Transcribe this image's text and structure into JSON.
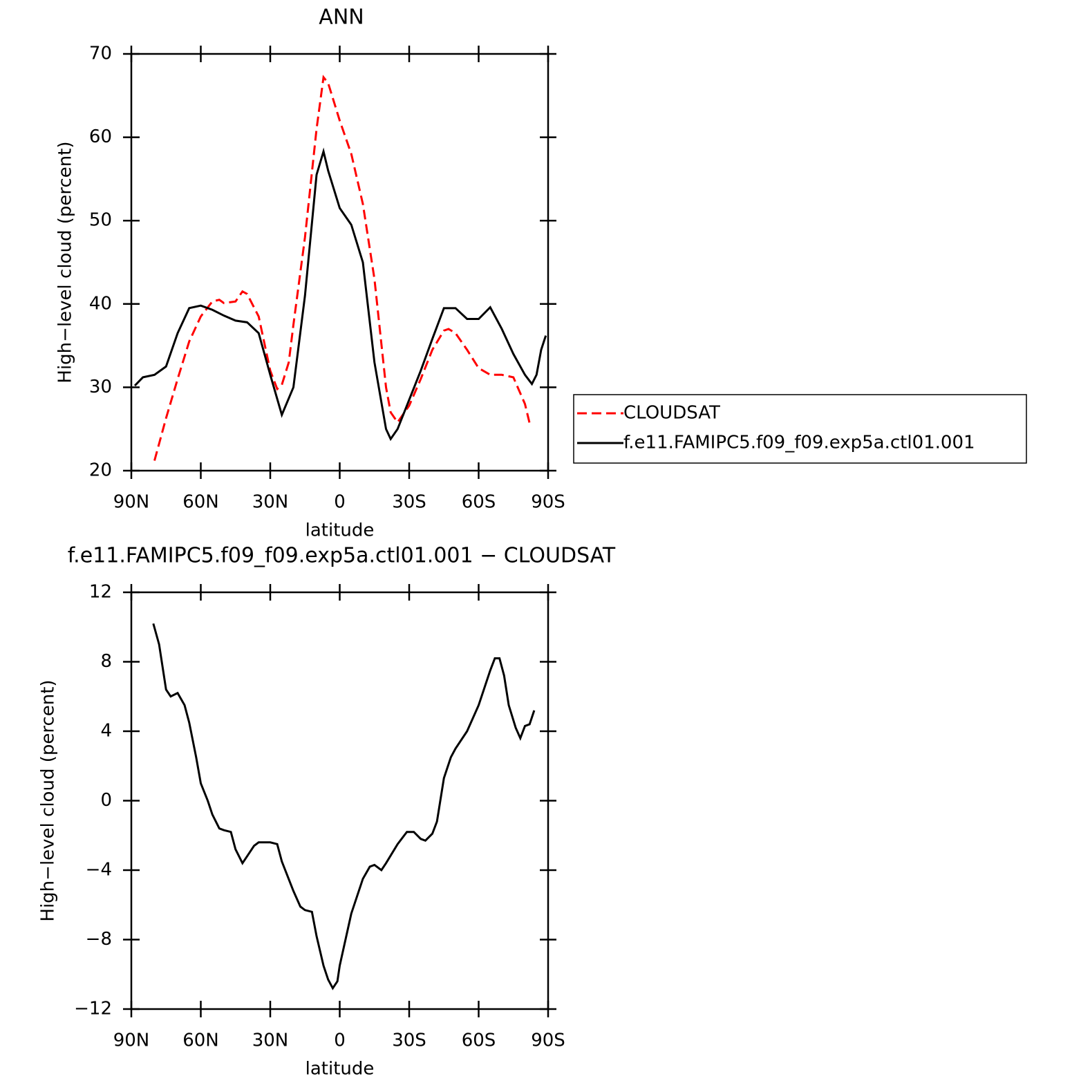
{
  "chart_data": [
    {
      "type": "line",
      "title": "ANN",
      "xlabel": "latitude",
      "ylabel": "High−level cloud (percent)",
      "xlim": [
        90,
        -90
      ],
      "xticks": [
        {
          "value": 90,
          "label": "90N"
        },
        {
          "value": 60,
          "label": "60N"
        },
        {
          "value": 30,
          "label": "30N"
        },
        0,
        {
          "value": -30,
          "label": "30S"
        },
        {
          "value": -60,
          "label": "60S"
        },
        {
          "value": -90,
          "label": "90S"
        }
      ],
      "ylim": [
        20,
        70
      ],
      "yticks": [
        20,
        30,
        40,
        50,
        60,
        70
      ],
      "legend": "right",
      "series": [
        {
          "name": "CLOUDSAT",
          "color": "#ff0000",
          "dash": "dashed",
          "x": [
            80,
            75,
            70,
            65,
            60,
            55,
            52,
            50,
            45,
            42,
            40,
            35,
            30,
            27,
            25,
            22,
            20,
            15,
            10,
            7,
            5,
            0,
            -5,
            -10,
            -15,
            -20,
            -22,
            -25,
            -30,
            -35,
            -40,
            -45,
            -47,
            -50,
            -55,
            -60,
            -65,
            -70,
            -75,
            -80,
            -82
          ],
          "values": [
            21.2,
            26.3,
            31,
            35.5,
            38.5,
            40.3,
            40.5,
            40.1,
            40.3,
            41.5,
            41.2,
            38.5,
            32,
            29.8,
            30.3,
            33,
            37.5,
            48,
            61,
            67.2,
            66.5,
            62,
            58,
            52,
            43,
            30,
            27,
            25.8,
            27.8,
            31,
            34.5,
            36.8,
            37,
            36.5,
            34.5,
            32.3,
            31.5,
            31.5,
            31.2,
            28,
            25.7
          ]
        },
        {
          "name": "f.e11.FAMIPC5.f09_f09.exp5a.ctl01.001",
          "color": "#000000",
          "dash": "solid",
          "x": [
            88.5,
            85,
            80,
            75,
            70,
            65,
            60,
            55,
            50,
            45,
            40,
            35,
            30,
            25,
            20,
            15,
            10,
            7,
            5,
            0,
            -5,
            -10,
            -15,
            -20,
            -22,
            -25,
            -30,
            -35,
            -40,
            -45,
            -50,
            -55,
            -60,
            -65,
            -70,
            -75,
            -80,
            -83,
            -85,
            -87,
            -89
          ],
          "values": [
            30.2,
            31.2,
            31.5,
            32.5,
            36.5,
            39.5,
            39.8,
            39.3,
            38.6,
            38,
            37.8,
            36.5,
            31.5,
            26.7,
            30,
            41,
            55.5,
            58.3,
            56,
            51.5,
            49.5,
            45,
            33,
            25,
            23.8,
            25,
            28.5,
            32,
            35.8,
            39.5,
            39.5,
            38.2,
            38.2,
            39.6,
            37,
            34,
            31.5,
            30.4,
            31.5,
            34.5,
            36.2
          ]
        }
      ]
    },
    {
      "type": "line",
      "title": "f.e11.FAMIPC5.f09_f09.exp5a.ctl01.001 − CLOUDSAT",
      "xlabel": "latitude",
      "ylabel": "High−level cloud (percent)",
      "xlim": [
        90,
        -90
      ],
      "xticks": [
        {
          "value": 90,
          "label": "90N"
        },
        {
          "value": 60,
          "label": "60N"
        },
        {
          "value": 30,
          "label": "30N"
        },
        0,
        {
          "value": -30,
          "label": "30S"
        },
        {
          "value": -60,
          "label": "60S"
        },
        {
          "value": -90,
          "label": "90S"
        }
      ],
      "ylim": [
        -12,
        12
      ],
      "yticks": [
        {
          "value": -12,
          "label": "−12"
        },
        {
          "value": -8,
          "label": "−8"
        },
        {
          "value": -4,
          "label": "−4"
        },
        0,
        4,
        8,
        12
      ],
      "series": [
        {
          "color": "#000000",
          "dash": "solid",
          "x": [
            80.5,
            78,
            75,
            73,
            70,
            67,
            65,
            62,
            60,
            57,
            55,
            52,
            50,
            47,
            45,
            42,
            40,
            37,
            35,
            30,
            27,
            25,
            20,
            17,
            15,
            12,
            10,
            7,
            5,
            3,
            1,
            0,
            -5,
            -10,
            -13,
            -15,
            -18,
            -20,
            -25,
            -29,
            -32,
            -35,
            -37,
            -40,
            -42,
            -45,
            -48,
            -50,
            -55,
            -60,
            -65,
            -67,
            -69,
            -71,
            -73,
            -76,
            -78,
            -80,
            -82,
            -84
          ],
          "values": [
            10.2,
            9,
            6.4,
            6,
            6.2,
            5.5,
            4.5,
            2.5,
            1,
            0,
            -0.8,
            -1.6,
            -1.7,
            -1.8,
            -2.8,
            -3.6,
            -3.2,
            -2.6,
            -2.4,
            -2.4,
            -2.5,
            -3.5,
            -5.2,
            -6.1,
            -6.3,
            -6.4,
            -7.8,
            -9.5,
            -10.3,
            -10.8,
            -10.4,
            -9.5,
            -6.5,
            -4.5,
            -3.8,
            -3.7,
            -4,
            -3.6,
            -2.5,
            -1.8,
            -1.8,
            -2.2,
            -2.3,
            -1.9,
            -1.2,
            1.3,
            2.5,
            3,
            4,
            5.5,
            7.5,
            8.2,
            8.2,
            7.2,
            5.5,
            4.2,
            3.6,
            4.3,
            4.4,
            5.2
          ]
        }
      ]
    }
  ]
}
